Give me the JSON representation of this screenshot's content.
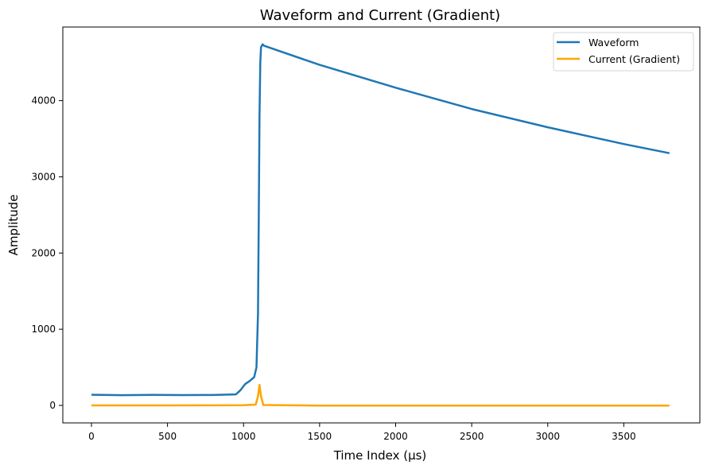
{
  "chart_data": {
    "type": "line",
    "title": "Waveform and Current (Gradient)",
    "xlabel": "Time Index (µs)",
    "ylabel": "Amplitude",
    "xlim": [
      -190,
      3990
    ],
    "ylim": [
      -230,
      4980
    ],
    "xticks": [
      0,
      500,
      1000,
      1500,
      2000,
      2500,
      3000,
      3500
    ],
    "yticks": [
      0,
      1000,
      2000,
      3000,
      4000
    ],
    "grid": false,
    "legend_position": "upper right",
    "series": [
      {
        "name": "Waveform",
        "color": "#1f77b4",
        "x": [
          0,
          200,
          400,
          600,
          800,
          950,
          980,
          1010,
          1040,
          1070,
          1085,
          1095,
          1100,
          1105,
          1110,
          1115,
          1125,
          1135,
          1500,
          2000,
          2500,
          3000,
          3500,
          3800
        ],
        "values": [
          140,
          135,
          138,
          136,
          137,
          145,
          200,
          280,
          320,
          370,
          500,
          1200,
          2500,
          3800,
          4500,
          4700,
          4740,
          4720,
          4470,
          4170,
          3890,
          3650,
          3430,
          3310
        ]
      },
      {
        "name": "Current (Gradient)",
        "color": "#ffa500",
        "x": [
          0,
          500,
          1000,
          1080,
          1095,
          1105,
          1115,
          1130,
          1500,
          2000,
          2500,
          3000,
          3500,
          3800
        ],
        "values": [
          0,
          0,
          2,
          10,
          120,
          270,
          120,
          5,
          -2,
          -2,
          -2,
          -2,
          -2,
          -2
        ]
      }
    ]
  }
}
